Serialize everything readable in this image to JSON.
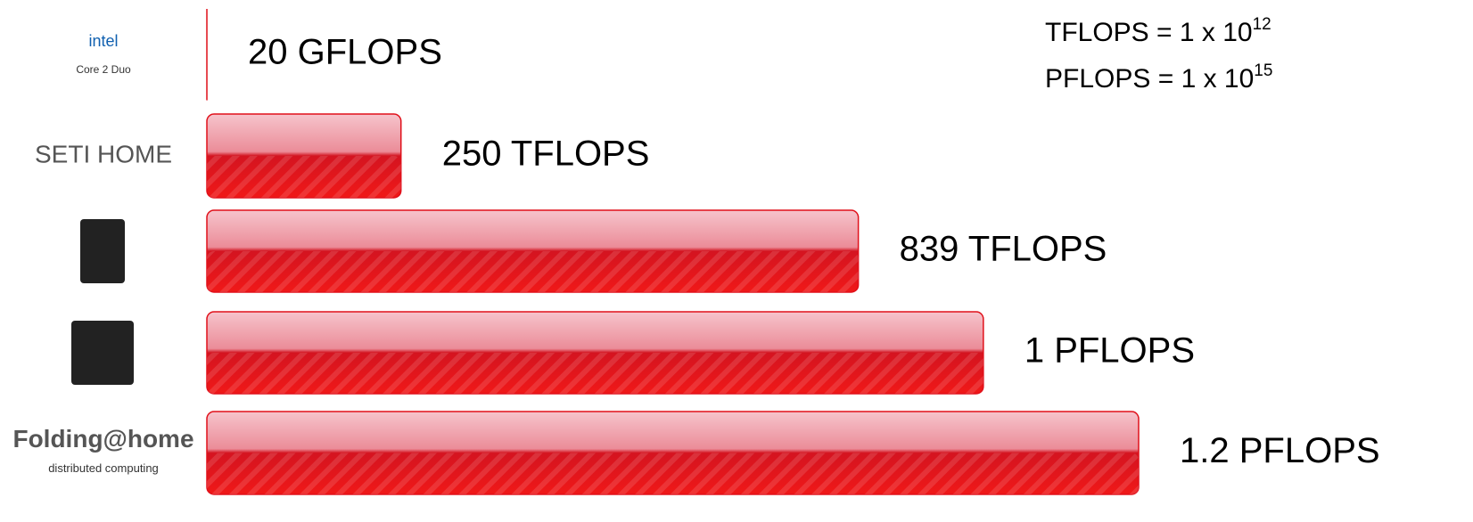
{
  "chart_data": {
    "type": "bar",
    "orientation": "horizontal",
    "categories": [
      "intel",
      "SETI HOME",
      null,
      null,
      "Folding@home"
    ],
    "logo_subtitles": [
      "Core 2 Duo",
      null,
      null,
      null,
      "distributed computing"
    ],
    "values": [
      0.02,
      250,
      839,
      1000,
      1200
    ],
    "value_labels": [
      "20 GFLOPS",
      "250 TFLOPS",
      "839 TFLOPS",
      "1 PFLOPS",
      "1.2 PFLOPS"
    ],
    "color": "#e0101a",
    "annotations": [
      {
        "text": "TFLOPS = 1 x 10",
        "sup": "12"
      },
      {
        "text": "PFLOPS = 1 x 10",
        "sup": "15"
      }
    ]
  }
}
